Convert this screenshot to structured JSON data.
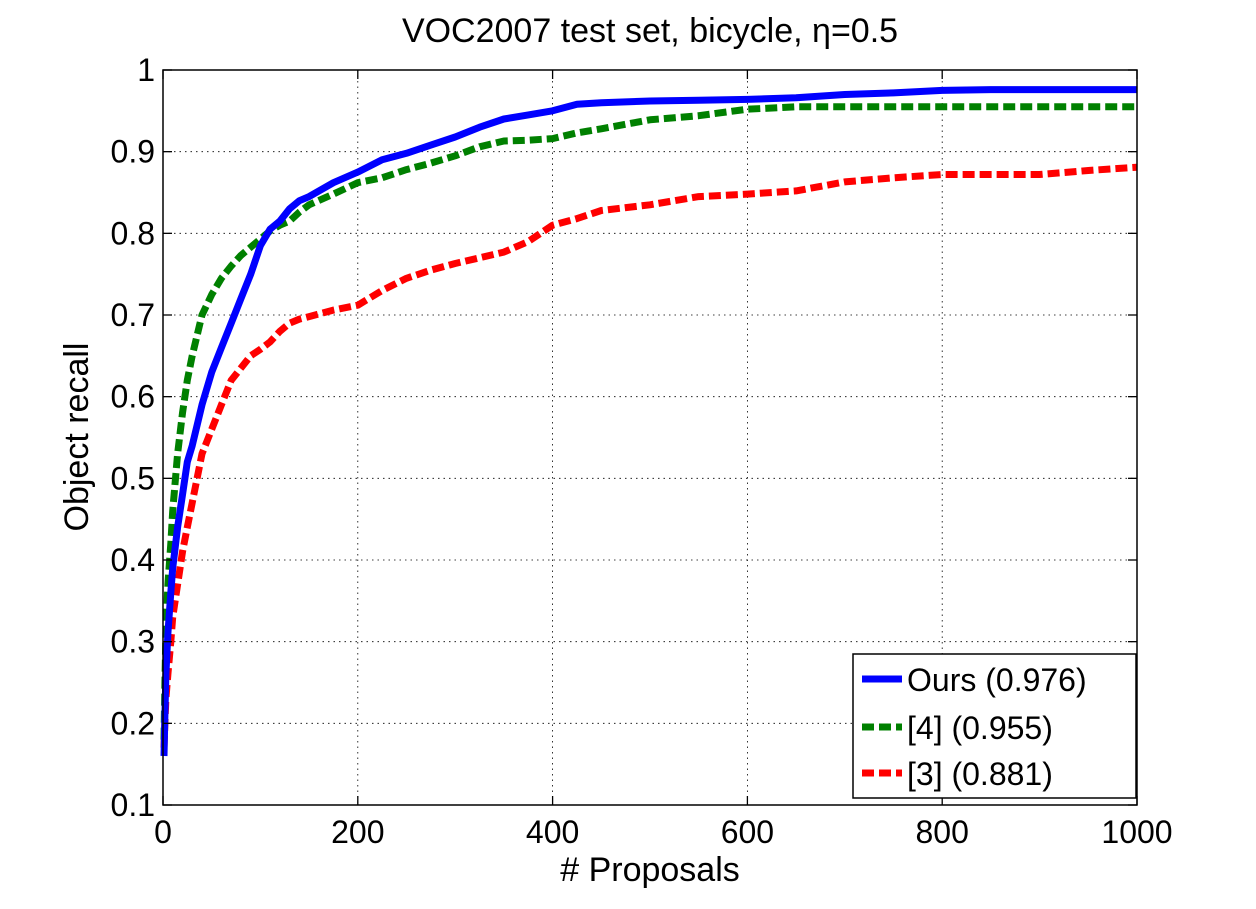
{
  "chart_data": {
    "type": "line",
    "title_prefix": "VOC2007 test set, bicycle, ",
    "title_symbol": "η",
    "title_suffix": "=0.5",
    "xlabel": "# Proposals",
    "ylabel": "Object recall",
    "xlim": [
      0,
      1000
    ],
    "ylim": [
      0.1,
      1.0
    ],
    "grid": true,
    "legend_position": "bottom-right",
    "xticks": [
      {
        "value": 0,
        "label": "0"
      },
      {
        "value": 200,
        "label": "200"
      },
      {
        "value": 400,
        "label": "400"
      },
      {
        "value": 600,
        "label": "600"
      },
      {
        "value": 800,
        "label": "800"
      },
      {
        "value": 1000,
        "label": "1000"
      }
    ],
    "yticks": [
      {
        "value": 0.1,
        "label": "0.1"
      },
      {
        "value": 0.2,
        "label": "0.2"
      },
      {
        "value": 0.3,
        "label": "0.3"
      },
      {
        "value": 0.4,
        "label": "0.4"
      },
      {
        "value": 0.5,
        "label": "0.5"
      },
      {
        "value": 0.6,
        "label": "0.6"
      },
      {
        "value": 0.7,
        "label": "0.7"
      },
      {
        "value": 0.8,
        "label": "0.8"
      },
      {
        "value": 0.9,
        "label": "0.9"
      },
      {
        "value": 1.0,
        "label": "1"
      }
    ],
    "series": [
      {
        "name": "Ours",
        "label": "Ours (0.976)",
        "color": "#0000ff",
        "dash": "solid",
        "x": [
          1,
          2,
          3,
          5,
          8,
          10,
          15,
          20,
          25,
          30,
          40,
          50,
          60,
          70,
          80,
          90,
          100,
          110,
          120,
          130,
          140,
          150,
          175,
          200,
          225,
          250,
          275,
          300,
          325,
          350,
          375,
          400,
          425,
          450,
          500,
          550,
          600,
          650,
          700,
          750,
          800,
          850,
          900,
          950,
          1000
        ],
        "y": [
          0.16,
          0.21,
          0.26,
          0.31,
          0.36,
          0.39,
          0.44,
          0.48,
          0.52,
          0.54,
          0.59,
          0.63,
          0.66,
          0.69,
          0.72,
          0.75,
          0.785,
          0.805,
          0.815,
          0.83,
          0.84,
          0.845,
          0.862,
          0.875,
          0.89,
          0.898,
          0.908,
          0.918,
          0.93,
          0.94,
          0.945,
          0.95,
          0.958,
          0.96,
          0.962,
          0.963,
          0.964,
          0.966,
          0.97,
          0.972,
          0.975,
          0.976,
          0.976,
          0.976,
          0.976
        ]
      },
      {
        "name": "[4]",
        "label": "[4] (0.955)",
        "color": "#008000",
        "dash": "dashed",
        "x": [
          1,
          2,
          3,
          5,
          8,
          10,
          15,
          20,
          25,
          30,
          40,
          50,
          60,
          70,
          80,
          90,
          100,
          110,
          120,
          130,
          140,
          150,
          175,
          200,
          225,
          250,
          275,
          300,
          325,
          350,
          375,
          400,
          425,
          450,
          500,
          550,
          600,
          650,
          700,
          750,
          800,
          850,
          900,
          950,
          1000
        ],
        "y": [
          0.18,
          0.25,
          0.31,
          0.37,
          0.42,
          0.46,
          0.53,
          0.58,
          0.62,
          0.65,
          0.7,
          0.725,
          0.745,
          0.76,
          0.773,
          0.783,
          0.793,
          0.803,
          0.81,
          0.815,
          0.826,
          0.835,
          0.848,
          0.862,
          0.868,
          0.878,
          0.886,
          0.895,
          0.906,
          0.913,
          0.914,
          0.916,
          0.923,
          0.928,
          0.939,
          0.944,
          0.952,
          0.955,
          0.955,
          0.955,
          0.955,
          0.955,
          0.955,
          0.955,
          0.955
        ]
      },
      {
        "name": "[3]",
        "label": "[3] (0.881)",
        "color": "#ff0000",
        "dash": "dashed",
        "x": [
          1,
          2,
          3,
          5,
          8,
          10,
          15,
          20,
          25,
          30,
          40,
          50,
          60,
          70,
          80,
          90,
          100,
          110,
          120,
          130,
          140,
          150,
          175,
          200,
          225,
          250,
          275,
          300,
          325,
          350,
          375,
          400,
          425,
          450,
          500,
          550,
          600,
          650,
          700,
          750,
          800,
          850,
          900,
          950,
          1000
        ],
        "y": [
          0.17,
          0.2,
          0.23,
          0.26,
          0.3,
          0.33,
          0.37,
          0.41,
          0.44,
          0.47,
          0.53,
          0.56,
          0.59,
          0.62,
          0.635,
          0.65,
          0.658,
          0.667,
          0.68,
          0.69,
          0.695,
          0.698,
          0.706,
          0.712,
          0.73,
          0.745,
          0.755,
          0.763,
          0.77,
          0.777,
          0.79,
          0.81,
          0.818,
          0.828,
          0.835,
          0.845,
          0.848,
          0.852,
          0.863,
          0.868,
          0.872,
          0.872,
          0.872,
          0.877,
          0.881
        ]
      }
    ]
  }
}
